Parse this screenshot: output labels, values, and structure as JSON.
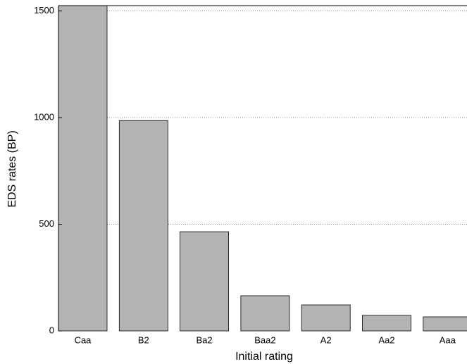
{
  "chart_data": {
    "type": "bar",
    "x_label": "Initial rating",
    "y_label": "EDS rates (BP)",
    "categories": [
      "Caa",
      "B2",
      "Ba2",
      "Baa2",
      "A2",
      "Aa2",
      "Aaa"
    ],
    "values": [
      1525,
      986,
      465,
      165,
      122,
      73,
      66
    ],
    "color": "#b3b3b3",
    "ylim": [
      0,
      1525
    ],
    "yticks": [
      0,
      500,
      1000,
      1500
    ],
    "grid": true
  }
}
